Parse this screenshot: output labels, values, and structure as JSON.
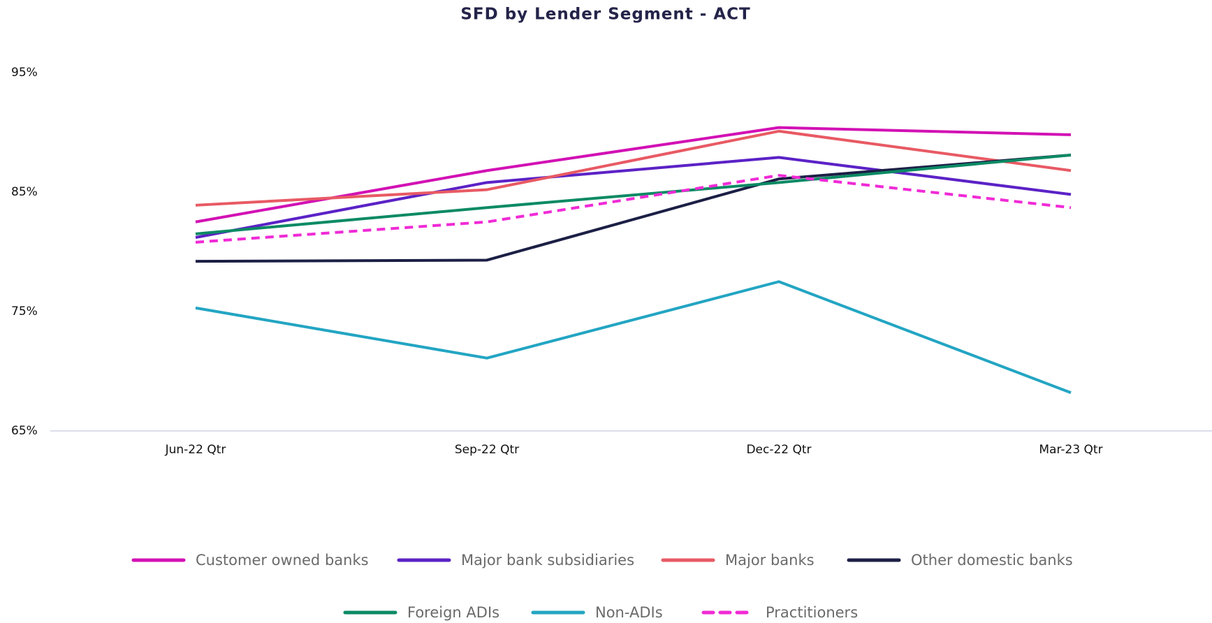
{
  "chart_data": {
    "type": "line",
    "title": "SFD by Lender Segment - ACT",
    "categories": [
      "Jun-22 Qtr",
      "Sep-22 Qtr",
      "Dec-22 Qtr",
      "Mar-23 Qtr"
    ],
    "ylim": [
      65,
      95
    ],
    "yticks": [
      {
        "value": 65,
        "label": "65%"
      },
      {
        "value": 75,
        "label": "75%"
      },
      {
        "value": 85,
        "label": "85%"
      },
      {
        "value": 95,
        "label": "95%"
      }
    ],
    "grid": false,
    "legend": "bottom",
    "series": [
      {
        "name": "Customer owned banks",
        "color": "#d211b4",
        "values": [
          82.5,
          86.8,
          90.4,
          89.8
        ]
      },
      {
        "name": "Major bank subsidiaries",
        "color": "#5b22c6",
        "values": [
          81.2,
          85.8,
          87.9,
          84.8
        ]
      },
      {
        "name": "Major banks",
        "color": "#e85a64",
        "values": [
          83.9,
          85.2,
          90.1,
          86.8
        ]
      },
      {
        "name": "Other domestic banks",
        "color": "#1c1f45",
        "values": [
          79.2,
          79.3,
          86.1,
          88.1
        ]
      },
      {
        "name": "Foreign ADIs",
        "color": "#0b8a64",
        "values": [
          81.5,
          83.7,
          85.8,
          88.1
        ]
      },
      {
        "name": "Non-ADIs",
        "color": "#23a5c3",
        "values": [
          75.3,
          71.1,
          77.5,
          68.2
        ]
      },
      {
        "name": "Practitioners",
        "color": "#f02ad6",
        "dashed": true,
        "values": [
          80.8,
          82.5,
          86.4,
          83.7
        ]
      }
    ]
  }
}
